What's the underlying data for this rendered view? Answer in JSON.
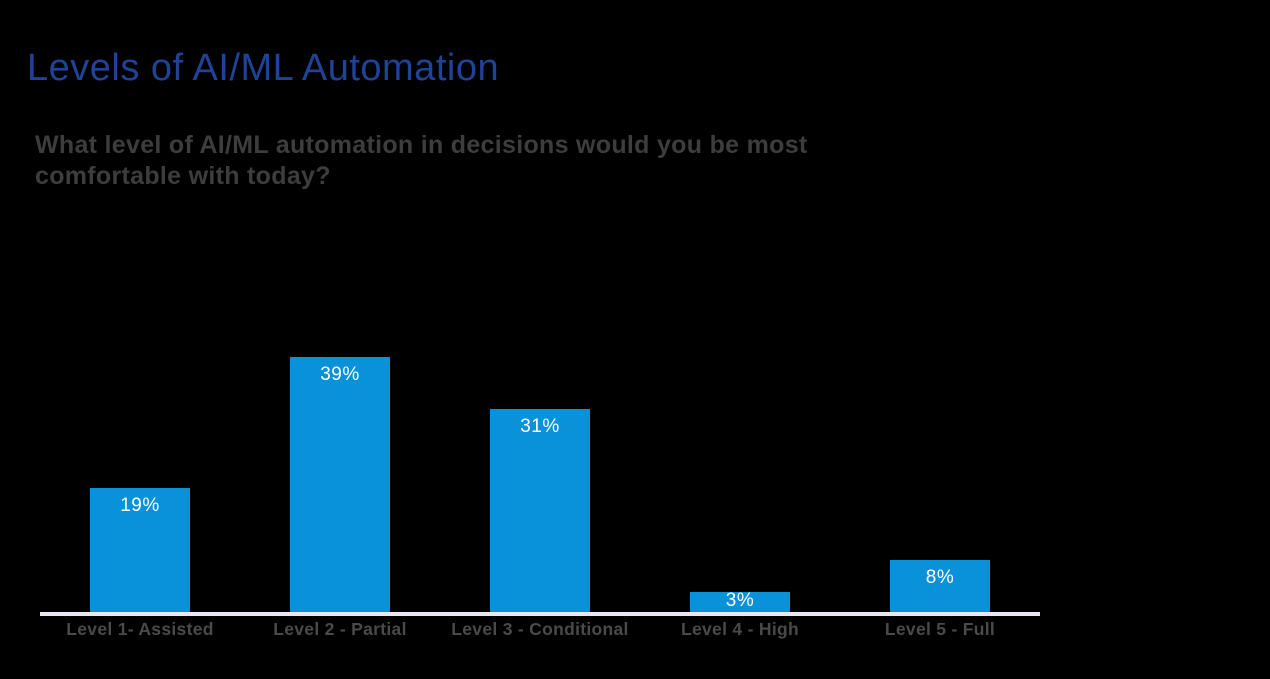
{
  "page": {
    "background_color": "#000000"
  },
  "header": {
    "title": "Levels of AI/ML Automation",
    "title_color": "#1F4396",
    "subtitle": "What level of AI/ML automation in decisions would you be most comfortable with today?",
    "subtitle_color": "#3D3D3D"
  },
  "chart_data": {
    "type": "bar",
    "title": "Levels of AI/ML Automation",
    "subtitle": "What level of AI/ML automation in decisions would you be most comfortable with today?",
    "categories": [
      "Level 1- Assisted",
      "Level 2 - Partial",
      "Level 3 - Conditional",
      "Level 4 - High",
      "Level 5 - Full"
    ],
    "values": [
      19,
      39,
      31,
      3,
      8
    ],
    "value_labels": [
      "19%",
      "39%",
      "31%",
      "3%",
      "8%"
    ],
    "xlabel": "",
    "ylabel": "",
    "ylim": [
      0,
      40
    ],
    "grid": false,
    "legend": false,
    "value_label_position": "inside-top",
    "bar_color": "#0991D9",
    "value_label_color": "#FFFFFF",
    "category_label_color": "#4A4A4A",
    "axis_line_color": "#ECE6F2"
  }
}
